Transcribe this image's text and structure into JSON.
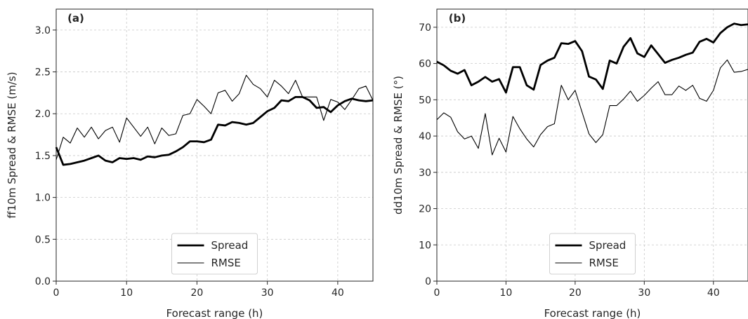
{
  "chart_data": [
    {
      "type": "line",
      "panel_label": "(a)",
      "xlabel": "Forecast range (h)",
      "ylabel": "ff10m Spread & RMSE (m/s)",
      "xlim": [
        0,
        45
      ],
      "ylim": [
        0,
        3.25
      ],
      "xticks": [
        0,
        10,
        20,
        30,
        40
      ],
      "yticks": [
        0.0,
        0.5,
        1.0,
        1.5,
        2.0,
        2.5,
        3.0
      ],
      "ytick_labels": [
        "0.0",
        "0.5",
        "1.0",
        "1.5",
        "2.0",
        "2.5",
        "3.0"
      ],
      "grid": true,
      "legend_position": "bottom-center",
      "x": [
        0,
        1,
        2,
        3,
        4,
        5,
        6,
        7,
        8,
        9,
        10,
        11,
        12,
        13,
        14,
        15,
        16,
        17,
        18,
        19,
        20,
        21,
        22,
        23,
        24,
        25,
        26,
        27,
        28,
        29,
        30,
        31,
        32,
        33,
        34,
        35,
        36,
        37,
        38,
        39,
        40,
        41,
        42,
        43,
        44,
        45
      ],
      "series": [
        {
          "name": "Spread",
          "style": "thick",
          "values": [
            1.6,
            1.39,
            1.4,
            1.42,
            1.44,
            1.47,
            1.5,
            1.44,
            1.42,
            1.47,
            1.46,
            1.47,
            1.45,
            1.49,
            1.48,
            1.5,
            1.51,
            1.55,
            1.6,
            1.67,
            1.67,
            1.66,
            1.69,
            1.87,
            1.86,
            1.9,
            1.89,
            1.87,
            1.89,
            1.96,
            2.03,
            2.07,
            2.16,
            2.15,
            2.2,
            2.2,
            2.16,
            2.07,
            2.08,
            2.02,
            2.1,
            2.15,
            2.18,
            2.16,
            2.15,
            2.16
          ]
        },
        {
          "name": "RMSE",
          "style": "thin",
          "values": [
            1.45,
            1.72,
            1.65,
            1.83,
            1.72,
            1.84,
            1.7,
            1.8,
            1.84,
            1.66,
            1.95,
            1.84,
            1.73,
            1.84,
            1.64,
            1.83,
            1.74,
            1.76,
            1.98,
            2.0,
            2.17,
            2.09,
            2.0,
            2.25,
            2.28,
            2.15,
            2.24,
            2.46,
            2.35,
            2.3,
            2.2,
            2.4,
            2.33,
            2.24,
            2.4,
            2.2,
            2.2,
            2.2,
            1.92,
            2.17,
            2.14,
            2.05,
            2.17,
            2.3,
            2.33,
            2.16
          ]
        }
      ]
    },
    {
      "type": "line",
      "panel_label": "(b)",
      "xlabel": "Forecast range (h)",
      "ylabel": "dd10m Spread & RMSE (°)",
      "xlim": [
        0,
        45
      ],
      "ylim": [
        0,
        75
      ],
      "xticks": [
        0,
        10,
        20,
        30,
        40
      ],
      "yticks": [
        0,
        10,
        20,
        30,
        40,
        50,
        60,
        70
      ],
      "ytick_labels": [
        "0",
        "10",
        "20",
        "30",
        "40",
        "50",
        "60",
        "70"
      ],
      "grid": true,
      "legend_position": "bottom-center",
      "x": [
        0,
        1,
        2,
        3,
        4,
        5,
        6,
        7,
        8,
        9,
        10,
        11,
        12,
        13,
        14,
        15,
        16,
        17,
        18,
        19,
        20,
        21,
        22,
        23,
        24,
        25,
        26,
        27,
        28,
        29,
        30,
        31,
        32,
        33,
        34,
        35,
        36,
        37,
        38,
        39,
        40,
        41,
        42,
        43,
        44,
        45
      ],
      "series": [
        {
          "name": "Spread",
          "style": "thick",
          "values": [
            60.5,
            59.5,
            58,
            57.2,
            58.2,
            54,
            55,
            56.3,
            55,
            55.7,
            52,
            59,
            59,
            54,
            52.8,
            59.6,
            60.8,
            61.6,
            65.6,
            65.4,
            66.2,
            63.4,
            56.4,
            55.6,
            53,
            60.8,
            60,
            64.6,
            67,
            62.8,
            61.8,
            65,
            62.6,
            60.2,
            61,
            61.6,
            62.4,
            63,
            66,
            66.8,
            65.8,
            68.4,
            70,
            71,
            70.6,
            70.8
          ]
        },
        {
          "name": "RMSE",
          "style": "thin",
          "values": [
            44.5,
            46.4,
            45.2,
            41.2,
            39.2,
            40,
            36.6,
            46.2,
            34.8,
            39.4,
            35.6,
            45.4,
            42,
            39.2,
            37,
            40.4,
            42.6,
            43.4,
            54,
            50,
            52.6,
            46.6,
            40.6,
            38.2,
            40.4,
            48.4,
            48.4,
            50.2,
            52.4,
            49.6,
            51.2,
            53.2,
            55,
            51.4,
            51.4,
            53.8,
            52.6,
            54,
            50.4,
            49.6,
            52.6,
            58.8,
            61,
            57.6,
            57.8,
            58.4
          ]
        }
      ]
    }
  ]
}
